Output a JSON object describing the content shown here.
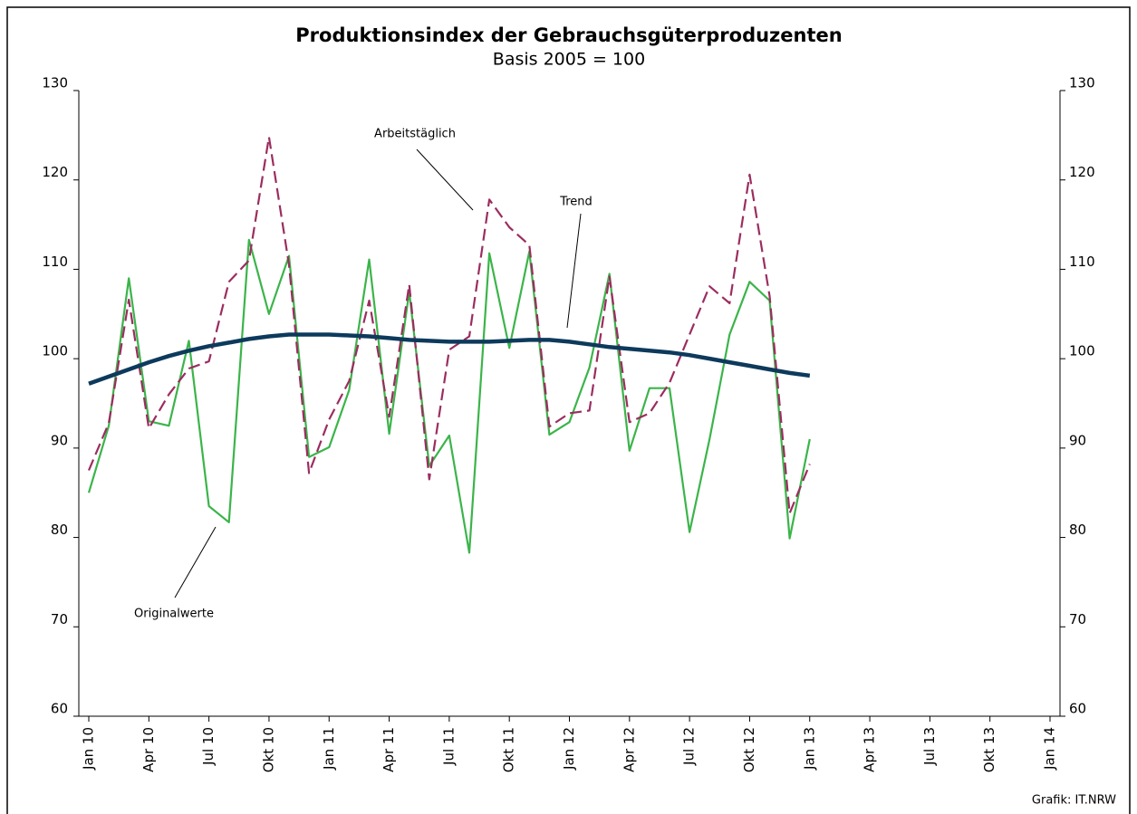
{
  "chart_data": {
    "type": "line",
    "title": "Produktionsindex der Gebrauchsgüterproduzenten",
    "subtitle": "Basis 2005 = 100",
    "categories": [
      "Jan 10",
      null,
      null,
      "Apr 10",
      null,
      null,
      "Jul 10",
      null,
      null,
      "Okt 10",
      null,
      null,
      "Jan 11",
      null,
      null,
      "Apr 11",
      null,
      null,
      "Jul 11",
      null,
      null,
      "Okt 11",
      null,
      null,
      "Jan 12",
      null,
      null,
      "Apr 12",
      null,
      null,
      "Jul 12",
      null,
      null,
      "Okt 12",
      null,
      null,
      "Jan 13",
      null,
      null,
      "Apr 13",
      null,
      null,
      "Jul 13",
      null,
      null,
      "Okt 13",
      null,
      null,
      "Jan 14"
    ],
    "series": [
      {
        "name": "Originalwerte",
        "color": "#3bb44a",
        "dash": false,
        "width": 2.2,
        "values": [
          85,
          92.5,
          109,
          93,
          92.5,
          102,
          83.5,
          81.7,
          113.3,
          105,
          111.5,
          89,
          90.1,
          96.5,
          111.1,
          91.6,
          107.5,
          88,
          91.4,
          78.3,
          111.8,
          101.2,
          112,
          91.5,
          92.9,
          99,
          109.5,
          89.7,
          96.7,
          96.7,
          80.6,
          91,
          102.7,
          108.6,
          106.5,
          79.9,
          91,
          null,
          null,
          null,
          null,
          null,
          null,
          null,
          null,
          null,
          null,
          null,
          null
        ]
      },
      {
        "name": "Arbeitstäglich",
        "color": "#9b2d5f",
        "dash": true,
        "width": 2.2,
        "values": [
          87.5,
          92.8,
          106.6,
          92.2,
          96,
          98.9,
          99.7,
          108.6,
          111,
          124.8,
          110.5,
          87.2,
          93.2,
          97.5,
          106.5,
          93.5,
          108.3,
          86.5,
          101,
          102.5,
          117.8,
          114.7,
          112.7,
          92.4,
          93.9,
          94.2,
          109.2,
          92.9,
          93.9,
          97.3,
          102.7,
          108.1,
          106.2,
          120.6,
          107,
          82.7,
          88.2,
          null,
          null,
          null,
          null,
          null,
          null,
          null,
          null,
          null,
          null,
          null,
          null
        ]
      },
      {
        "name": "Trend",
        "color": "#0d3a5c",
        "dash": false,
        "width": 4.5,
        "values": [
          97.2,
          98,
          98.8,
          99.6,
          100.3,
          100.9,
          101.4,
          101.8,
          102.2,
          102.5,
          102.7,
          102.7,
          102.7,
          102.6,
          102.5,
          102.3,
          102.1,
          102,
          101.9,
          101.9,
          101.9,
          102,
          102.1,
          102.1,
          101.9,
          101.6,
          101.3,
          101.1,
          100.9,
          100.7,
          100.4,
          100,
          99.6,
          99.2,
          98.8,
          98.4,
          98.1,
          null,
          null,
          null,
          null,
          null,
          null,
          null,
          null,
          null,
          null,
          null,
          null
        ]
      }
    ],
    "ylim": [
      60,
      130
    ],
    "yticks": [
      60,
      70,
      80,
      90,
      100,
      110,
      120,
      130
    ],
    "y2lim": [
      60,
      130
    ],
    "y2ticks": [
      60,
      70,
      80,
      90,
      100,
      110,
      120,
      130
    ],
    "grid": false,
    "source": "Grafik: IT.NRW"
  }
}
